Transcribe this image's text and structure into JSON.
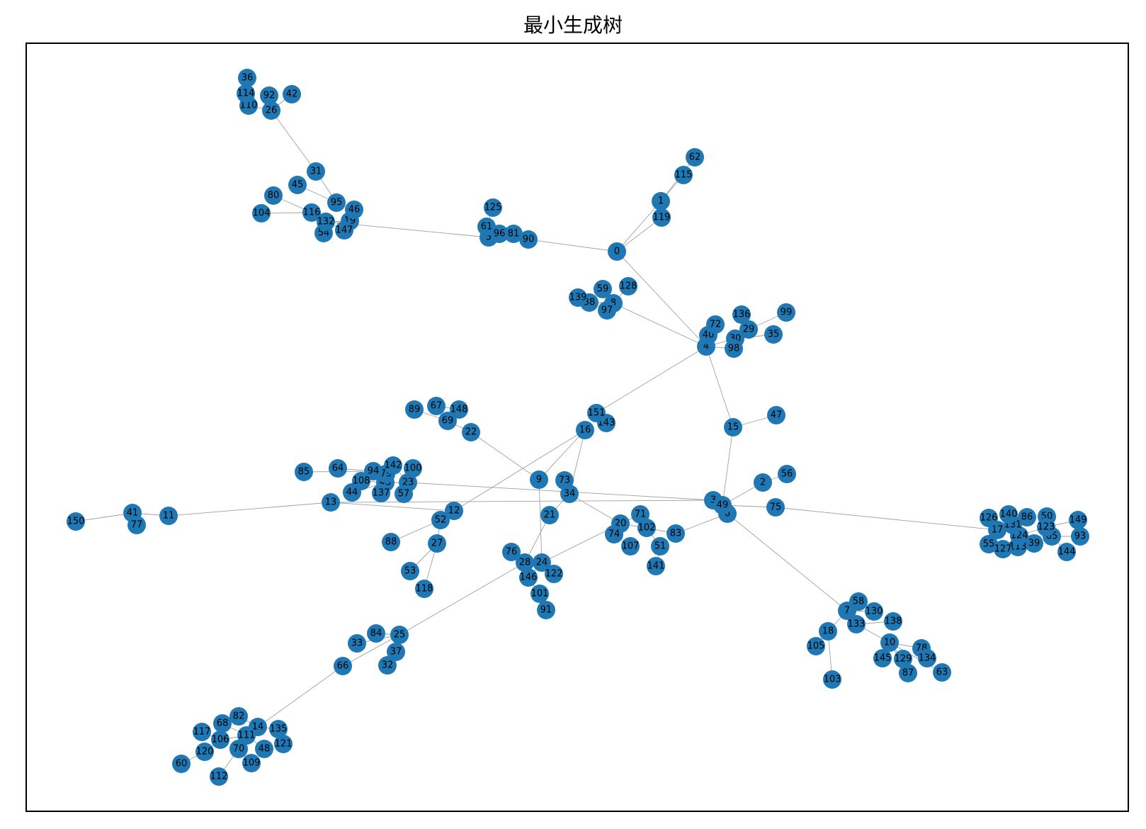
{
  "figure": {
    "title": "最小生成树"
  },
  "colors": {
    "node": "#1f77b4",
    "edge": "#a0a0a0",
    "frame": "#000000"
  },
  "graph": {
    "nodes": [
      "0",
      "1",
      "2",
      "3",
      "4",
      "5",
      "6",
      "7",
      "8",
      "9",
      "10",
      "11",
      "12",
      "13",
      "14",
      "15",
      "16",
      "17",
      "18",
      "19",
      "20",
      "21",
      "22",
      "23",
      "24",
      "25",
      "26",
      "27",
      "28",
      "29",
      "30",
      "31",
      "32",
      "33",
      "34",
      "35",
      "36",
      "37",
      "38",
      "39",
      "40",
      "41",
      "42",
      "43",
      "44",
      "45",
      "46",
      "47",
      "48",
      "49",
      "50",
      "51",
      "52",
      "53",
      "54",
      "55",
      "56",
      "57",
      "58",
      "59",
      "60",
      "61",
      "62",
      "63",
      "64",
      "65",
      "66",
      "67",
      "68",
      "69",
      "70",
      "71",
      "72",
      "73",
      "74",
      "75",
      "76",
      "77",
      "78",
      "79",
      "80",
      "81",
      "82",
      "83",
      "84",
      "85",
      "86",
      "87",
      "88",
      "89",
      "90",
      "91",
      "92",
      "93",
      "94",
      "95",
      "96",
      "97",
      "98",
      "99",
      "100",
      "101",
      "102",
      "103",
      "104",
      "105",
      "106",
      "107",
      "108",
      "109",
      "110",
      "111",
      "112",
      "113",
      "114",
      "115",
      "116",
      "117",
      "118",
      "119",
      "120",
      "121",
      "122",
      "123",
      "124",
      "125",
      "126",
      "127",
      "128",
      "129",
      "130",
      "131",
      "132",
      "133",
      "134",
      "135",
      "136",
      "137",
      "138",
      "139",
      "140",
      "141",
      "142",
      "143",
      "144",
      "145",
      "146",
      "147",
      "148",
      "149",
      "150",
      "151"
    ],
    "edges": [
      [
        "0",
        "1"
      ],
      [
        "1",
        "62"
      ],
      [
        "1",
        "115"
      ],
      [
        "0",
        "119"
      ],
      [
        "0",
        "90"
      ],
      [
        "90",
        "81"
      ],
      [
        "81",
        "96"
      ],
      [
        "96",
        "5"
      ],
      [
        "5",
        "61"
      ],
      [
        "61",
        "125"
      ],
      [
        "5",
        "132"
      ],
      [
        "132",
        "19"
      ],
      [
        "19",
        "46"
      ],
      [
        "46",
        "95"
      ],
      [
        "95",
        "31"
      ],
      [
        "31",
        "26"
      ],
      [
        "26",
        "92"
      ],
      [
        "26",
        "110"
      ],
      [
        "110",
        "114"
      ],
      [
        "114",
        "36"
      ],
      [
        "26",
        "42"
      ],
      [
        "95",
        "45"
      ],
      [
        "132",
        "116"
      ],
      [
        "116",
        "80"
      ],
      [
        "116",
        "104"
      ],
      [
        "132",
        "54"
      ],
      [
        "132",
        "147"
      ],
      [
        "0",
        "4"
      ],
      [
        "4",
        "8"
      ],
      [
        "8",
        "97"
      ],
      [
        "8",
        "38"
      ],
      [
        "38",
        "139"
      ],
      [
        "8",
        "59"
      ],
      [
        "8",
        "128"
      ],
      [
        "4",
        "40"
      ],
      [
        "40",
        "72"
      ],
      [
        "4",
        "30"
      ],
      [
        "30",
        "29"
      ],
      [
        "29",
        "136"
      ],
      [
        "29",
        "99"
      ],
      [
        "30",
        "35"
      ],
      [
        "4",
        "98"
      ],
      [
        "4",
        "151"
      ],
      [
        "151",
        "143"
      ],
      [
        "4",
        "15"
      ],
      [
        "15",
        "47"
      ],
      [
        "15",
        "49"
      ],
      [
        "49",
        "3"
      ],
      [
        "49",
        "6"
      ],
      [
        "49",
        "2"
      ],
      [
        "2",
        "56"
      ],
      [
        "49",
        "75"
      ],
      [
        "75",
        "17"
      ],
      [
        "17",
        "126"
      ],
      [
        "17",
        "140"
      ],
      [
        "17",
        "131"
      ],
      [
        "131",
        "86"
      ],
      [
        "131",
        "124"
      ],
      [
        "124",
        "123"
      ],
      [
        "123",
        "50"
      ],
      [
        "123",
        "149"
      ],
      [
        "124",
        "65"
      ],
      [
        "65",
        "93"
      ],
      [
        "65",
        "144"
      ],
      [
        "124",
        "39"
      ],
      [
        "124",
        "113"
      ],
      [
        "124",
        "127"
      ],
      [
        "17",
        "55"
      ],
      [
        "6",
        "7"
      ],
      [
        "7",
        "58"
      ],
      [
        "7",
        "130"
      ],
      [
        "7",
        "133"
      ],
      [
        "133",
        "138"
      ],
      [
        "133",
        "10"
      ],
      [
        "10",
        "78"
      ],
      [
        "78",
        "134"
      ],
      [
        "10",
        "145"
      ],
      [
        "10",
        "129"
      ],
      [
        "10",
        "87"
      ],
      [
        "10",
        "63"
      ],
      [
        "7",
        "18"
      ],
      [
        "18",
        "105"
      ],
      [
        "18",
        "103"
      ],
      [
        "6",
        "83"
      ],
      [
        "83",
        "102"
      ],
      [
        "102",
        "20"
      ],
      [
        "20",
        "71"
      ],
      [
        "20",
        "74"
      ],
      [
        "74",
        "107"
      ],
      [
        "102",
        "51"
      ],
      [
        "51",
        "141"
      ],
      [
        "20",
        "24"
      ],
      [
        "3",
        "13"
      ],
      [
        "13",
        "11"
      ],
      [
        "11",
        "41"
      ],
      [
        "41",
        "77"
      ],
      [
        "41",
        "150"
      ],
      [
        "13",
        "12"
      ],
      [
        "12",
        "16"
      ],
      [
        "16",
        "9"
      ],
      [
        "16",
        "34"
      ],
      [
        "34",
        "73"
      ],
      [
        "34",
        "21"
      ],
      [
        "21",
        "28"
      ],
      [
        "34",
        "20"
      ],
      [
        "9",
        "22"
      ],
      [
        "22",
        "69"
      ],
      [
        "69",
        "89"
      ],
      [
        "69",
        "148"
      ],
      [
        "148",
        "67"
      ],
      [
        "12",
        "52"
      ],
      [
        "52",
        "88"
      ],
      [
        "52",
        "27"
      ],
      [
        "27",
        "53"
      ],
      [
        "27",
        "118"
      ],
      [
        "3",
        "23"
      ],
      [
        "23",
        "100"
      ],
      [
        "23",
        "142"
      ],
      [
        "23",
        "43"
      ],
      [
        "43",
        "79"
      ],
      [
        "79",
        "94"
      ],
      [
        "94",
        "64"
      ],
      [
        "94",
        "85"
      ],
      [
        "43",
        "108"
      ],
      [
        "43",
        "44"
      ],
      [
        "43",
        "137"
      ],
      [
        "23",
        "57"
      ],
      [
        "9",
        "24"
      ],
      [
        "24",
        "28"
      ],
      [
        "28",
        "76"
      ],
      [
        "24",
        "122"
      ],
      [
        "24",
        "146"
      ],
      [
        "146",
        "101"
      ],
      [
        "101",
        "91"
      ],
      [
        "28",
        "25"
      ],
      [
        "25",
        "84"
      ],
      [
        "25",
        "33"
      ],
      [
        "25",
        "37"
      ],
      [
        "37",
        "32"
      ],
      [
        "25",
        "66"
      ],
      [
        "66",
        "14"
      ],
      [
        "14",
        "135"
      ],
      [
        "135",
        "121"
      ],
      [
        "14",
        "82"
      ],
      [
        "14",
        "111"
      ],
      [
        "111",
        "68"
      ],
      [
        "111",
        "106"
      ],
      [
        "106",
        "117"
      ],
      [
        "106",
        "120"
      ],
      [
        "120",
        "60"
      ],
      [
        "111",
        "70"
      ],
      [
        "70",
        "112"
      ],
      [
        "70",
        "109"
      ],
      [
        "111",
        "48"
      ]
    ]
  }
}
